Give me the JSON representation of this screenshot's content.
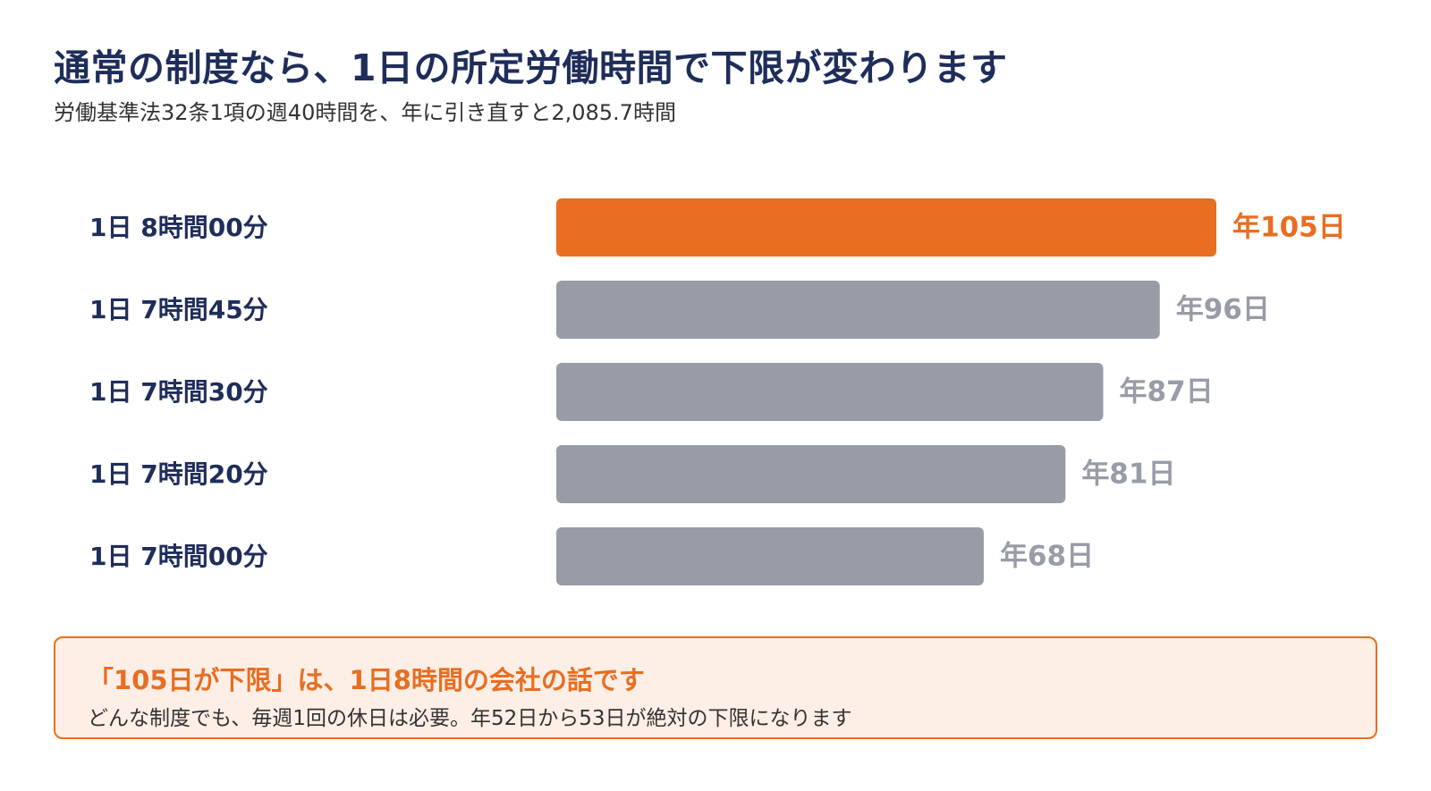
{
  "header": {
    "title": "通常の制度なら、1日の所定労働時間で下限が変わります",
    "subtitle": "労働基準法32条1項の週40時間を、年に引き直すと2,085.7時間"
  },
  "colors": {
    "highlight": "#e86e22",
    "default_bar": "#989ca6",
    "category_text": "#1f2d5a",
    "title_text": "#1f2d5a"
  },
  "chart_data": {
    "type": "bar",
    "orientation": "horizontal",
    "categories": [
      "1日 8時間00分",
      "1日 7時間45分",
      "1日 7時間30分",
      "1日 7時間20分",
      "1日 7時間00分"
    ],
    "values": [
      105,
      96,
      87,
      81,
      68
    ],
    "value_labels": [
      "年105日",
      "年96日",
      "年87日",
      "年81日",
      "年68日"
    ],
    "highlight_index": 0,
    "xlim": [
      0,
      105
    ],
    "grid": false,
    "legend": "none",
    "xlabel": "",
    "ylabel": ""
  },
  "callout": {
    "title": "「105日が下限」は、1日8時間の会社の話です",
    "body": "どんな制度でも、毎週1回の休日は必要。年52日から53日が絶対の下限になります"
  }
}
